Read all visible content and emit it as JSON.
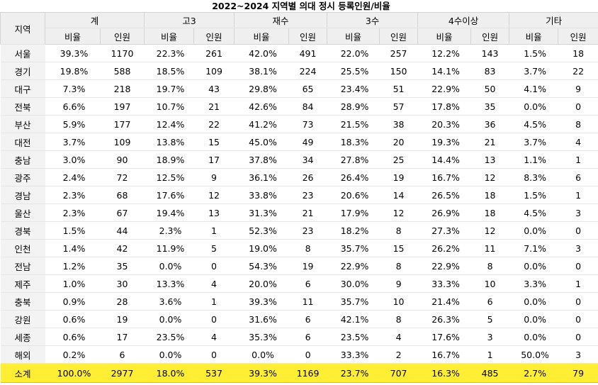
{
  "title": "2022~2024 지역별 의대 정시 등록인원/비율",
  "region_header": "지역",
  "groups": [
    "계",
    "고3",
    "재수",
    "3수",
    "4수이상",
    "기타"
  ],
  "sub_headers": {
    "rate": "비율",
    "count": "인원"
  },
  "rows": [
    {
      "region": "서울",
      "cells": [
        "39.3%",
        "1170",
        "22.3%",
        "261",
        "42.0%",
        "491",
        "22.0%",
        "257",
        "12.2%",
        "143",
        "1.5%",
        "18"
      ]
    },
    {
      "region": "경기",
      "cells": [
        "19.8%",
        "588",
        "18.5%",
        "109",
        "38.1%",
        "224",
        "25.5%",
        "150",
        "14.1%",
        "83",
        "3.7%",
        "22"
      ]
    },
    {
      "region": "대구",
      "cells": [
        "7.3%",
        "218",
        "19.7%",
        "43",
        "29.8%",
        "65",
        "23.4%",
        "51",
        "22.9%",
        "50",
        "4.1%",
        "9"
      ]
    },
    {
      "region": "전북",
      "cells": [
        "6.6%",
        "197",
        "10.7%",
        "21",
        "42.6%",
        "84",
        "28.9%",
        "57",
        "17.8%",
        "35",
        "0.0%",
        "0"
      ]
    },
    {
      "region": "부산",
      "cells": [
        "5.9%",
        "177",
        "12.4%",
        "22",
        "41.2%",
        "73",
        "21.5%",
        "38",
        "20.3%",
        "36",
        "4.5%",
        "8"
      ]
    },
    {
      "region": "대전",
      "cells": [
        "3.7%",
        "109",
        "13.8%",
        "15",
        "45.0%",
        "49",
        "18.3%",
        "20",
        "19.3%",
        "21",
        "3.7%",
        "4"
      ]
    },
    {
      "region": "충남",
      "cells": [
        "3.0%",
        "90",
        "18.9%",
        "17",
        "37.8%",
        "34",
        "27.8%",
        "25",
        "14.4%",
        "13",
        "1.1%",
        "1"
      ]
    },
    {
      "region": "광주",
      "cells": [
        "2.4%",
        "72",
        "12.5%",
        "9",
        "36.1%",
        "26",
        "26.4%",
        "19",
        "16.7%",
        "12",
        "8.3%",
        "6"
      ]
    },
    {
      "region": "경남",
      "cells": [
        "2.3%",
        "68",
        "17.6%",
        "12",
        "33.8%",
        "23",
        "20.6%",
        "14",
        "26.5%",
        "18",
        "1.5%",
        "1"
      ]
    },
    {
      "region": "울산",
      "cells": [
        "2.3%",
        "67",
        "19.4%",
        "13",
        "31.3%",
        "21",
        "17.9%",
        "12",
        "26.9%",
        "18",
        "4.5%",
        "3"
      ]
    },
    {
      "region": "경북",
      "cells": [
        "1.5%",
        "44",
        "2.3%",
        "1",
        "52.3%",
        "23",
        "18.2%",
        "8",
        "27.3%",
        "12",
        "0.0%",
        "0"
      ]
    },
    {
      "region": "인천",
      "cells": [
        "1.4%",
        "42",
        "11.9%",
        "5",
        "19.0%",
        "8",
        "35.7%",
        "15",
        "26.2%",
        "11",
        "7.1%",
        "3"
      ]
    },
    {
      "region": "전남",
      "cells": [
        "1.2%",
        "35",
        "0.0%",
        "0",
        "54.3%",
        "19",
        "22.9%",
        "8",
        "22.9%",
        "8",
        "0.0%",
        "0"
      ]
    },
    {
      "region": "제주",
      "cells": [
        "1.0%",
        "30",
        "13.3%",
        "4",
        "20.0%",
        "6",
        "30.0%",
        "9",
        "33.3%",
        "10",
        "3.3%",
        "1"
      ]
    },
    {
      "region": "충북",
      "cells": [
        "0.9%",
        "28",
        "3.6%",
        "1",
        "39.3%",
        "11",
        "35.7%",
        "10",
        "21.4%",
        "6",
        "0.0%",
        "0"
      ]
    },
    {
      "region": "강원",
      "cells": [
        "0.6%",
        "19",
        "0.0%",
        "0",
        "31.6%",
        "6",
        "42.1%",
        "8",
        "26.3%",
        "5",
        "0.0%",
        "0"
      ]
    },
    {
      "region": "세종",
      "cells": [
        "0.6%",
        "17",
        "23.5%",
        "4",
        "35.3%",
        "6",
        "23.5%",
        "4",
        "17.6%",
        "3",
        "0.0%",
        "0"
      ]
    },
    {
      "region": "해외",
      "cells": [
        "0.2%",
        "6",
        "0.0%",
        "0",
        "0.0%",
        "0",
        "33.3%",
        "2",
        "16.7%",
        "1",
        "50.0%",
        "3"
      ]
    }
  ],
  "total": {
    "region": "소계",
    "cells": [
      "100.0%",
      "2977",
      "18.0%",
      "537",
      "39.3%",
      "1169",
      "23.7%",
      "707",
      "16.3%",
      "485",
      "2.7%",
      "79"
    ]
  },
  "colors": {
    "header_bg": "#efefef",
    "total_bg": "#ffee33"
  }
}
